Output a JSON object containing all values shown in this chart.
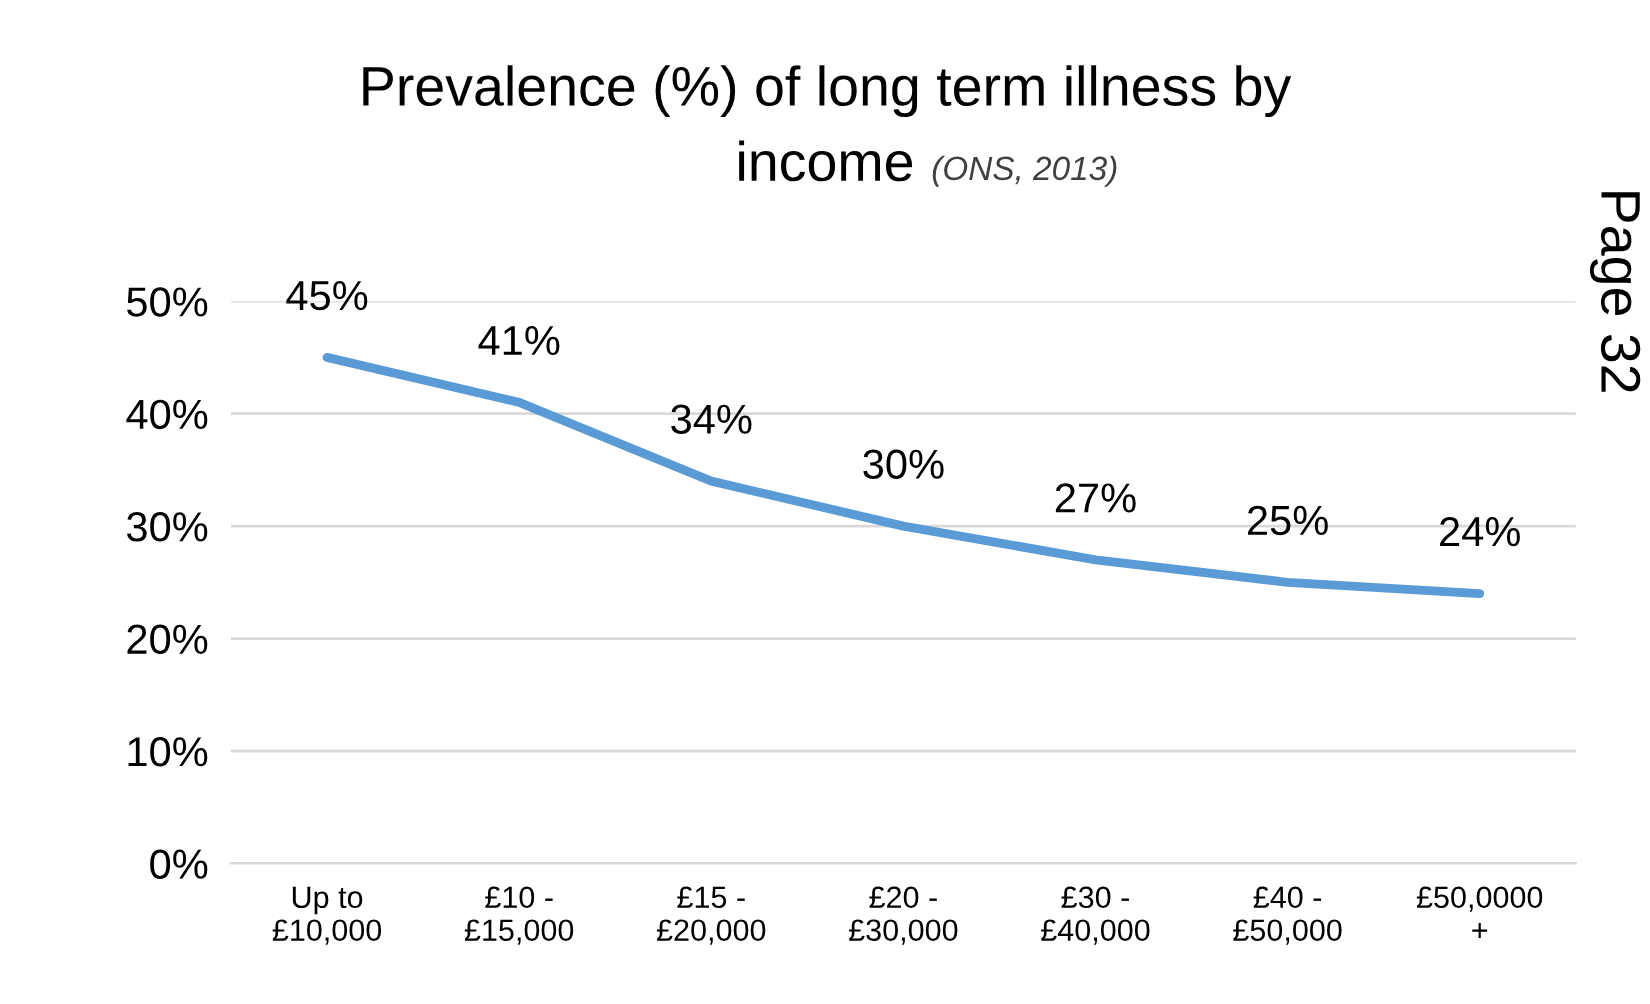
{
  "chart_data": {
    "type": "line",
    "title": "Prevalence (%) of long term illness by\nincome",
    "subtitle": "(ONS, 2013)",
    "categories": [
      "Up to\n£10,000",
      "£10 -\n£15,000",
      "£15 -\n£20,000",
      "£20 -\n£30,000",
      "£30 -\n£40,000",
      "£40 -\n£50,000",
      "£50,0000\n+"
    ],
    "series": [
      {
        "color": "#5b9bd5",
        "values": [
          45,
          41,
          34,
          30,
          27,
          25,
          24
        ],
        "value_labels": [
          "45%",
          "41%",
          "34%",
          "30%",
          "27%",
          "25%",
          "24%"
        ]
      }
    ],
    "ylim": [
      0,
      50
    ],
    "yticks": [
      {
        "value": 0,
        "label": "0%"
      },
      {
        "value": 10,
        "label": "10%"
      },
      {
        "value": 20,
        "label": "20%"
      },
      {
        "value": 30,
        "label": "30%"
      },
      {
        "value": 40,
        "label": "40%"
      },
      {
        "value": 50,
        "label": "50%"
      }
    ],
    "grid": "y",
    "marker": "none",
    "line_style": "solid",
    "legend": false,
    "annotations": [
      "Page 32"
    ]
  }
}
